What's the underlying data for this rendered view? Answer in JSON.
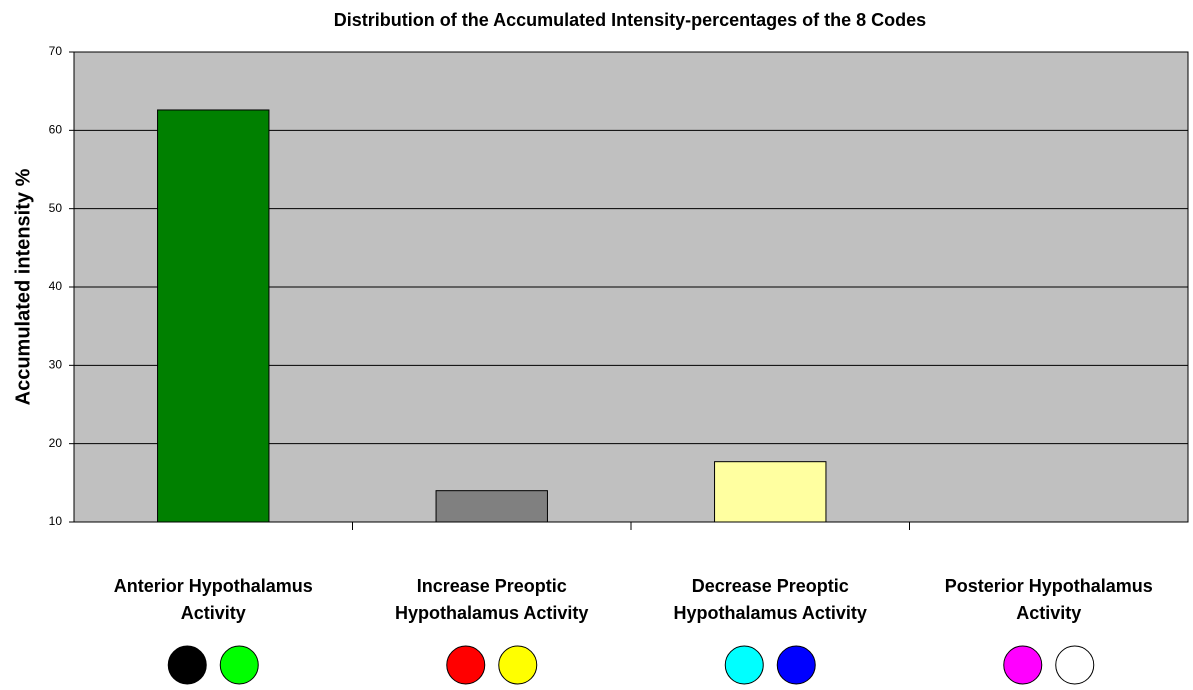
{
  "chart_data": {
    "type": "bar",
    "title": "Distribution of the Accumulated Intensity-percentages of the 8 Codes",
    "y_label": "Accumulated intensity %",
    "categories": [
      [
        "Anterior Hypothalamus",
        "Activity"
      ],
      [
        "Increase  Preoptic",
        "Hypothalamus Activity"
      ],
      [
        "Decrease Preoptic",
        "Hypothalamus Activity"
      ],
      [
        "Posterior Hypothalamus",
        "Activity"
      ]
    ],
    "values": [
      62.6,
      14.0,
      17.7,
      null
    ],
    "colors": [
      "#008000",
      "#808080",
      "#ffffa0",
      null
    ],
    "code_colors": [
      [
        "#000000",
        "#00ff00"
      ],
      [
        "#ff0000",
        "#ffff00"
      ],
      [
        "#00ffff",
        "#0000ff"
      ],
      [
        "#ff00ff",
        "#ffffff"
      ]
    ],
    "ylim": [
      10,
      70
    ],
    "yticks": [
      10,
      20,
      30,
      40,
      50,
      60,
      70
    ],
    "grid": true,
    "plot_background": "#c0c0c0"
  }
}
